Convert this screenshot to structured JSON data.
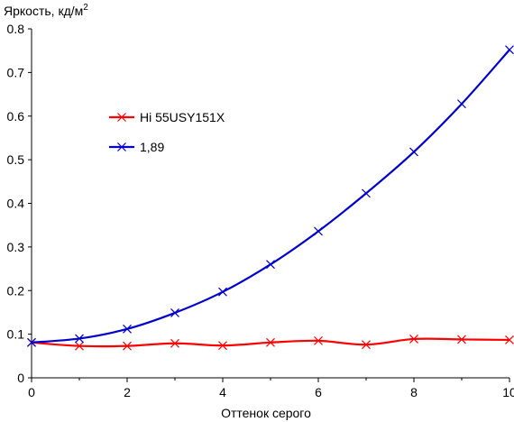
{
  "chart_data": {
    "type": "line",
    "title": "",
    "ylabel": "Яркость, кд/м",
    "ylabel_superscript": "2",
    "xlabel": "Оттенок серого",
    "xlim": [
      0,
      10
    ],
    "ylim": [
      0,
      0.8
    ],
    "x_ticks": [
      "0",
      "2",
      "4",
      "6",
      "8",
      "10"
    ],
    "y_ticks": [
      "0",
      "0.1",
      "0.2",
      "0.3",
      "0.4",
      "0.5",
      "0.6",
      "0.7",
      "0.8"
    ],
    "grid": false,
    "legend_position": "center-left",
    "x": [
      0,
      1,
      2,
      3,
      4,
      5,
      6,
      7,
      8,
      9,
      10
    ],
    "series": [
      {
        "name": "Hi 55USY151X",
        "color": "#ff0000",
        "marker": "x",
        "values": [
          0.081,
          0.073,
          0.073,
          0.079,
          0.074,
          0.081,
          0.085,
          0.076,
          0.089,
          0.088,
          0.087
        ]
      },
      {
        "name": "1,89",
        "color": "#0000cc",
        "marker": "x",
        "values": [
          0.081,
          0.09,
          0.112,
          0.149,
          0.197,
          0.26,
          0.336,
          0.423,
          0.518,
          0.628,
          0.752
        ]
      }
    ]
  }
}
